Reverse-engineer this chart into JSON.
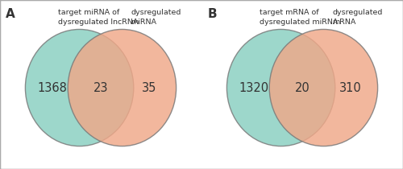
{
  "panels": [
    {
      "label": "A",
      "left_label_line1": "target miRNA of",
      "left_label_line2": "dysregulated lncRNA",
      "right_label_line1": "dysregulated",
      "right_label_line2": "miRNA",
      "left_value": "1368",
      "center_value": "23",
      "right_value": "35",
      "left_color": "#88cfc0",
      "right_color": "#f0a888",
      "left_edge_color": "#777777",
      "right_edge_color": "#777777"
    },
    {
      "label": "B",
      "left_label_line1": "target mRNA of",
      "left_label_line2": "dysregulated miRNA",
      "right_label_line1": "dysregulated",
      "right_label_line2": "mRNA",
      "left_value": "1320",
      "center_value": "20",
      "right_value": "310",
      "left_color": "#88cfc0",
      "right_color": "#f0a888",
      "left_edge_color": "#777777",
      "right_edge_color": "#777777"
    }
  ],
  "background_color": "#ffffff",
  "text_color": "#333333",
  "label_fontsize": 6.8,
  "value_fontsize": 10.5,
  "panel_label_fontsize": 11,
  "fig_width": 5.0,
  "fig_height": 2.1,
  "dpi": 100
}
